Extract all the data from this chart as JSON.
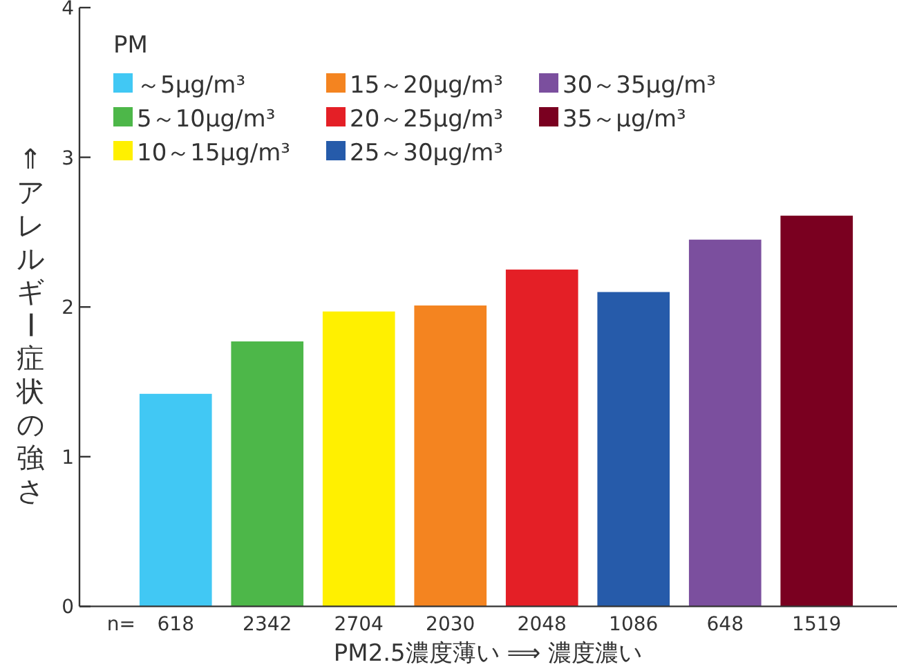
{
  "chart_data": {
    "type": "bar",
    "xlabel": "PM2.5濃度薄い ⟹ 濃度濃い",
    "ylabel": "⇑アレルギー症状の強さ",
    "legend_title": "PM",
    "legend": "top left",
    "grid": false,
    "categories": [
      "618",
      "2342",
      "2704",
      "2030",
      "2048",
      "1086",
      "648",
      "1519"
    ],
    "ylim": [
      0,
      4
    ],
    "yticks": [
      0,
      1,
      2,
      3,
      4
    ],
    "annotations": [
      "n="
    ],
    "series": [
      {
        "name": "～5μg/m³",
        "color": "#41c8f4",
        "values": [
          1.42,
          null,
          null,
          null,
          null,
          null,
          null,
          null
        ]
      },
      {
        "name": "5～10μg/m³",
        "color": "#4db749",
        "values": [
          null,
          1.77,
          null,
          null,
          null,
          null,
          null,
          null
        ]
      },
      {
        "name": "10～15μg/m³",
        "color": "#fff000",
        "values": [
          null,
          null,
          1.97,
          null,
          null,
          null,
          null,
          null
        ]
      },
      {
        "name": "15～20μg/m³",
        "color": "#f48420",
        "values": [
          null,
          null,
          null,
          2.01,
          null,
          null,
          null,
          null
        ]
      },
      {
        "name": "20～25μg/m³",
        "color": "#e41f26",
        "values": [
          null,
          null,
          null,
          null,
          2.25,
          null,
          null,
          null
        ]
      },
      {
        "name": "25～30μg/m³",
        "color": "#265baa",
        "values": [
          null,
          null,
          null,
          null,
          null,
          2.1,
          null,
          null
        ]
      },
      {
        "name": "30～35μg/m³",
        "color": "#7b4f9e",
        "values": [
          null,
          null,
          null,
          null,
          null,
          null,
          2.45,
          null
        ]
      },
      {
        "name": "35～μg/m³",
        "color": "#7a0020",
        "values": [
          null,
          null,
          null,
          null,
          null,
          null,
          null,
          2.61
        ]
      }
    ]
  }
}
